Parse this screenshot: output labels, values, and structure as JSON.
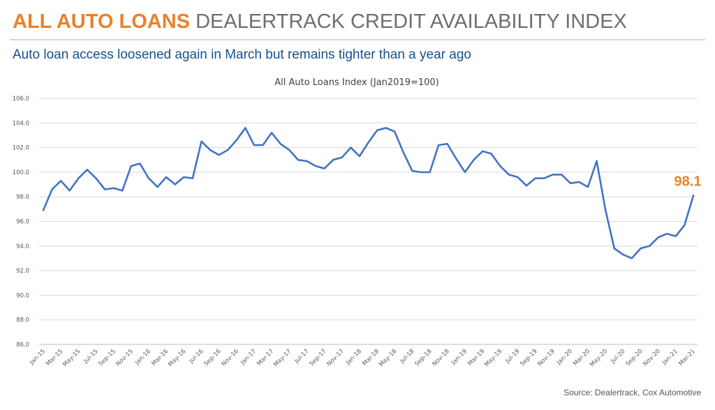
{
  "header": {
    "title_accent": "ALL AUTO LOANS",
    "title_rest": "DEALERTRACK CREDIT AVAILABILITY INDEX",
    "subtitle": "Auto loan access loosened again in March but remains tighter than a year ago"
  },
  "footer": {
    "source": "Source: Dealertrack, Cox Automotive"
  },
  "colors": {
    "accent": "#e8822a",
    "line": "#4472c4",
    "subtitle": "#16508f",
    "title_gray": "#6d6e71"
  },
  "chart_data": {
    "type": "line",
    "title": "All Auto Loans Index (Jan2019=100)",
    "xlabel": "",
    "ylabel": "",
    "ylim": [
      86,
      106
    ],
    "yticks": [
      "86.0",
      "88.0",
      "90.0",
      "92.0",
      "94.0",
      "96.0",
      "98.0",
      "100.0",
      "102.0",
      "104.0",
      "106.0"
    ],
    "grid": true,
    "end_label": "98.1",
    "x": [
      "Jan-15",
      "Feb-15",
      "Mar-15",
      "Apr-15",
      "May-15",
      "Jun-15",
      "Jul-15",
      "Aug-15",
      "Sep-15",
      "Oct-15",
      "Nov-15",
      "Dec-15",
      "Jan-16",
      "Feb-16",
      "Mar-16",
      "Apr-16",
      "May-16",
      "Jun-16",
      "Jul-16",
      "Aug-16",
      "Sep-16",
      "Oct-16",
      "Nov-16",
      "Dec-16",
      "Jan-17",
      "Feb-17",
      "Mar-17",
      "Apr-17",
      "May-17",
      "Jun-17",
      "Jul-17",
      "Aug-17",
      "Sep-17",
      "Oct-17",
      "Nov-17",
      "Dec-17",
      "Jan-18",
      "Feb-18",
      "Mar-18",
      "Apr-18",
      "May-18",
      "Jun-18",
      "Jul-18",
      "Aug-18",
      "Sep-18",
      "Oct-18",
      "Nov-18",
      "Dec-18",
      "Jan-19",
      "Feb-19",
      "Mar-19",
      "Apr-19",
      "May-19",
      "Jun-19",
      "Jul-19",
      "Aug-19",
      "Sep-19",
      "Oct-19",
      "Nov-19",
      "Dec-19",
      "Jan-20",
      "Feb-20",
      "Mar-20",
      "Apr-20",
      "May-20",
      "Jun-20",
      "Jul-20",
      "Aug-20",
      "Sep-20",
      "Oct-20",
      "Nov-20",
      "Dec-20",
      "Jan-21",
      "Feb-21",
      "Mar-21"
    ],
    "x_tick_labels": [
      "Jan-15",
      "Mar-15",
      "May-15",
      "Jul-15",
      "Sep-15",
      "Nov-15",
      "Jan-16",
      "Mar-16",
      "May-16",
      "Jul-16",
      "Sep-16",
      "Nov-16",
      "Jan-17",
      "Mar-17",
      "May-17",
      "Jul-17",
      "Sep-17",
      "Nov-17",
      "Jan-18",
      "Mar-18",
      "May-18",
      "Jul-18",
      "Sep-18",
      "Nov-18",
      "Jan-19",
      "Mar-19",
      "May-19",
      "Jul-19",
      "Sep-19",
      "Nov-19",
      "Jan-20",
      "Mar-20",
      "May-20",
      "Jul-20",
      "Sep-20",
      "Nov-20",
      "Jan-21",
      "Mar-21"
    ],
    "series": [
      {
        "values": [
          96.9,
          98.6,
          99.3,
          98.5,
          99.5,
          100.2,
          99.5,
          98.6,
          98.7,
          98.5,
          100.5,
          100.7,
          99.5,
          98.8,
          99.6,
          99.0,
          99.6,
          99.5,
          102.5,
          101.8,
          101.4,
          101.8,
          102.6,
          103.6,
          102.2,
          102.2,
          103.2,
          102.3,
          101.8,
          101.0,
          100.9,
          100.5,
          100.3,
          101.0,
          101.2,
          102.0,
          101.3,
          102.4,
          103.4,
          103.6,
          103.3,
          101.6,
          100.1,
          100.0,
          100.0,
          102.2,
          102.3,
          101.1,
          100.0,
          101.0,
          101.7,
          101.5,
          100.5,
          99.8,
          99.6,
          98.9,
          99.5,
          99.5,
          99.8,
          99.8,
          99.1,
          99.2,
          98.8,
          100.9,
          96.9,
          93.8,
          93.3,
          93.0,
          93.8,
          94.0,
          94.7,
          95.0,
          94.8,
          95.7,
          98.1
        ]
      }
    ]
  }
}
